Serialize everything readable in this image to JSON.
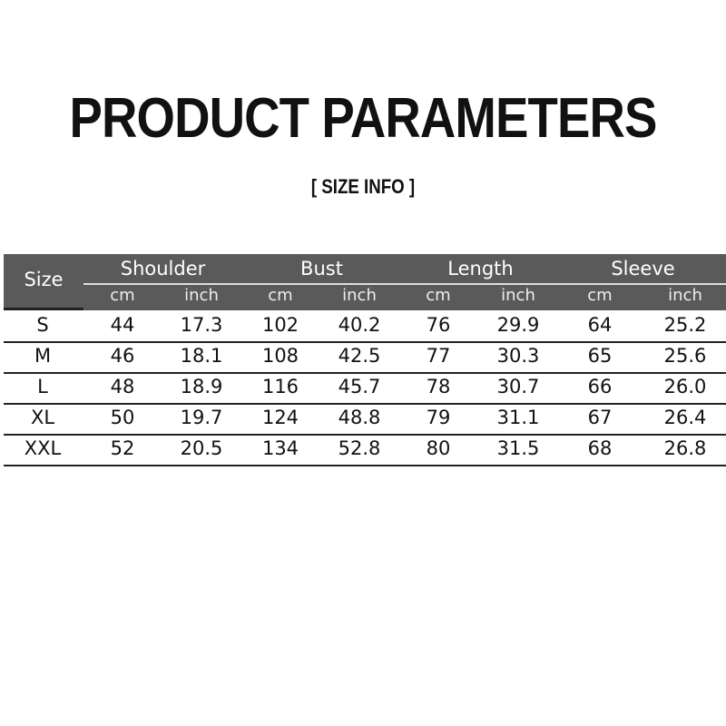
{
  "title": "PRODUCT PARAMETERS",
  "subtitle": "[ SIZE  INFO ]",
  "table": {
    "size_header": "Size",
    "groups": [
      "Shoulder",
      "Bust",
      "Length",
      "Sleeve"
    ],
    "units": [
      "cm",
      "inch",
      "cm",
      "inch",
      "cm",
      "inch",
      "cm",
      "inch"
    ],
    "rows": [
      [
        "S",
        "44",
        "17.3",
        "102",
        "40.2",
        "76",
        "29.9",
        "64",
        "25.2"
      ],
      [
        "M",
        "46",
        "18.1",
        "108",
        "42.5",
        "77",
        "30.3",
        "65",
        "25.6"
      ],
      [
        "L",
        "48",
        "18.9",
        "116",
        "45.7",
        "78",
        "30.7",
        "66",
        "26.0"
      ],
      [
        "XL",
        "50",
        "19.7",
        "124",
        "48.8",
        "79",
        "31.1",
        "67",
        "26.4"
      ],
      [
        "XXL",
        "52",
        "20.5",
        "134",
        "52.8",
        "80",
        "31.5",
        "68",
        "26.8"
      ]
    ]
  },
  "colors": {
    "header_bg": "#5a5a5a"
  }
}
